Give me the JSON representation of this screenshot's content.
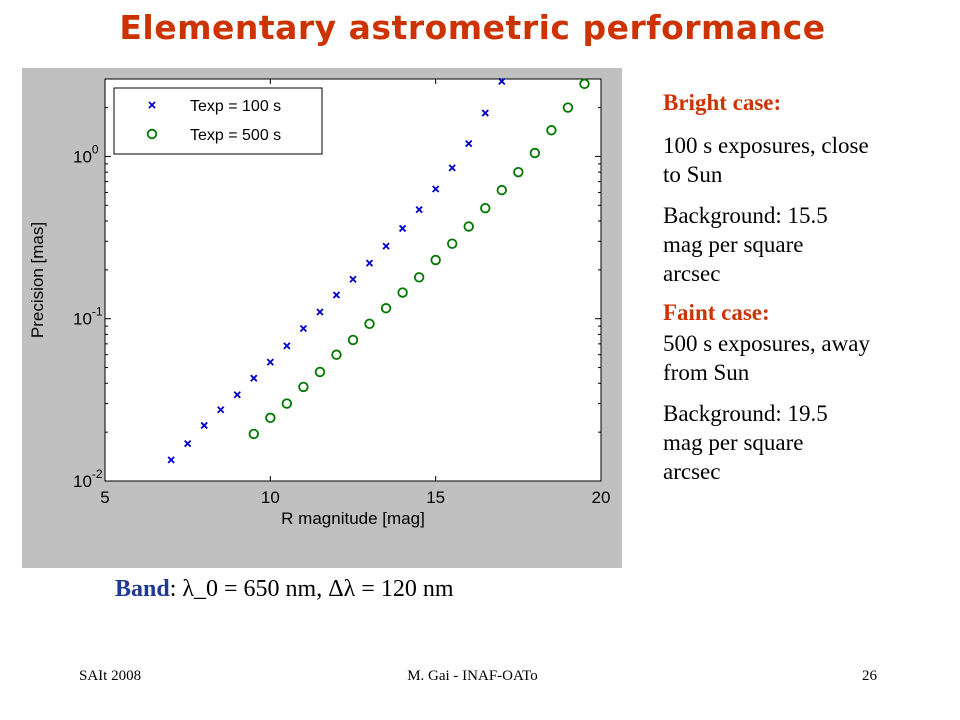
{
  "slide": {
    "title": "Elementary astrometric performance",
    "band_label": "Band",
    "band_text": ":  λ_0 = 650 nm,  Δλ = 120 nm"
  },
  "side_notes": {
    "bright_heading": "Bright case:",
    "bright_exposure": "100 s exposures, close to Sun",
    "bright_background": "Background: 15.5 mag per square arcsec",
    "faint_heading": "Faint case:",
    "faint_exposure": "500 s exposures, away from Sun",
    "faint_background": "Background: 19.5 mag per square arcsec"
  },
  "footer": {
    "left": "SAIt 2008",
    "center": "M. Gai - INAF-OATo",
    "right": "26"
  },
  "colors": {
    "title": "#cc3300",
    "series_100": "#0000cc",
    "series_500": "#007700",
    "band_label": "#1f3a93"
  },
  "chart_data": {
    "type": "scatter",
    "xlabel": "R magnitude [mag]",
    "ylabel": "Precision [mas]",
    "xlim": [
      5,
      20
    ],
    "ylim": [
      0.01,
      3
    ],
    "yscale": "log",
    "xticks": [
      "5",
      "10",
      "15",
      "20"
    ],
    "yticks": [
      {
        "value": 1,
        "base": "10",
        "exp": "0"
      },
      {
        "value": 0.1,
        "base": "10",
        "exp": "-1"
      },
      {
        "value": 0.01,
        "base": "10",
        "exp": "-2"
      }
    ],
    "grid": false,
    "legend_position": "top-left",
    "series": [
      {
        "name": "Texp = 100 s",
        "marker": "x",
        "color": "#0000cc",
        "x": [
          7.0,
          7.5,
          8.0,
          8.5,
          9.0,
          9.5,
          10.0,
          10.5,
          11.0,
          11.5,
          12.0,
          12.5,
          13.0,
          13.5,
          14.0,
          14.5,
          15.0,
          15.5,
          16.0,
          16.5,
          17.0
        ],
        "y": [
          0.0135,
          0.017,
          0.022,
          0.0275,
          0.034,
          0.043,
          0.054,
          0.068,
          0.087,
          0.11,
          0.14,
          0.175,
          0.22,
          0.28,
          0.36,
          0.47,
          0.63,
          0.85,
          1.2,
          1.85,
          2.9
        ]
      },
      {
        "name": "Texp = 500 s",
        "marker": "o",
        "color": "#007700",
        "x": [
          9.5,
          10.0,
          10.5,
          11.0,
          11.5,
          12.0,
          12.5,
          13.0,
          13.5,
          14.0,
          14.5,
          15.0,
          15.5,
          16.0,
          16.5,
          17.0,
          17.5,
          18.0,
          18.5,
          19.0,
          19.5
        ],
        "y": [
          0.0195,
          0.0245,
          0.03,
          0.038,
          0.047,
          0.06,
          0.074,
          0.093,
          0.116,
          0.145,
          0.18,
          0.23,
          0.29,
          0.37,
          0.48,
          0.62,
          0.8,
          1.05,
          1.45,
          2.0,
          2.8
        ]
      }
    ]
  }
}
